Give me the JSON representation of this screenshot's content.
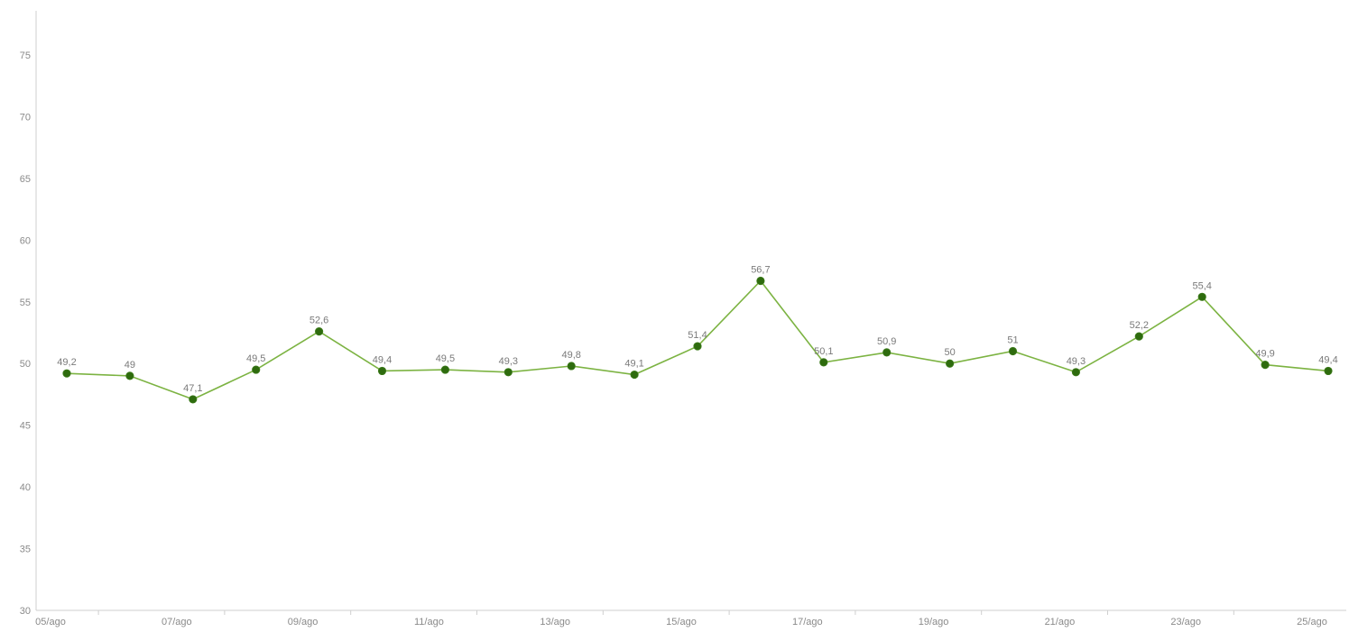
{
  "chart_data": {
    "type": "line",
    "title": "",
    "xlabel": "",
    "ylabel": "",
    "ylim": [
      30,
      75
    ],
    "yticks": [
      30,
      35,
      40,
      45,
      50,
      55,
      60,
      65,
      70,
      75
    ],
    "x": [
      "05/ago",
      "06/ago",
      "07/ago",
      "08/ago",
      "09/ago",
      "10/ago",
      "11/ago",
      "12/ago",
      "13/ago",
      "14/ago",
      "15/ago",
      "16/ago",
      "17/ago",
      "18/ago",
      "19/ago",
      "20/ago",
      "21/ago",
      "22/ago",
      "23/ago",
      "24/ago",
      "25/ago"
    ],
    "x_tick_labels": [
      "05/ago",
      "07/ago",
      "09/ago",
      "11/ago",
      "13/ago",
      "15/ago",
      "17/ago",
      "19/ago",
      "21/ago",
      "23/ago",
      "25/ago"
    ],
    "series": [
      {
        "values": [
          49.2,
          49,
          47.1,
          49.5,
          52.6,
          49.4,
          49.5,
          49.3,
          49.8,
          49.1,
          51.4,
          56.7,
          50.1,
          50.9,
          50,
          51,
          49.3,
          52.2,
          55.4,
          49.9,
          49.4
        ],
        "labels": [
          "49,2",
          "49",
          "47,1",
          "49,5",
          "52,6",
          "49,4",
          "49,5",
          "49,3",
          "49,8",
          "49,1",
          "51,4",
          "56,7",
          "50,1",
          "50,9",
          "50",
          "51",
          "49,3",
          "52,2",
          "55,4",
          "49,9",
          "49,4"
        ],
        "color": "#7cb342",
        "marker_color": "#2e6b0e"
      }
    ],
    "grid": false,
    "axis_color": "#cfcfcf"
  }
}
